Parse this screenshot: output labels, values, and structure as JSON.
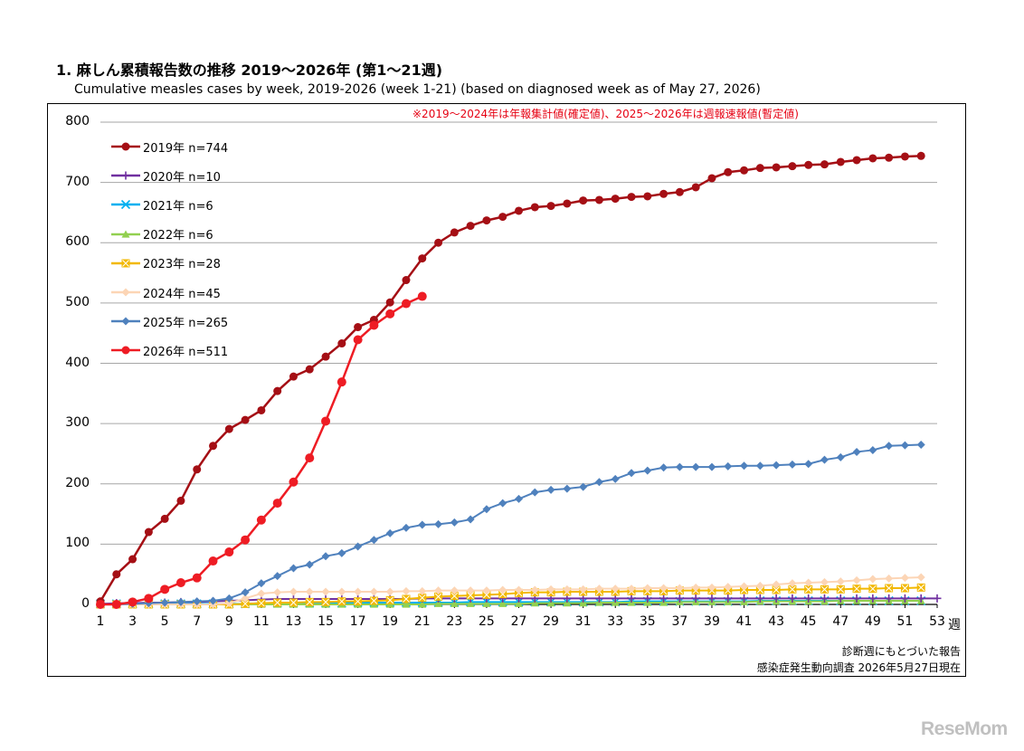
{
  "header": {
    "title": "1. 麻しん累積報告数の推移  2019～2026年 (第1～21週)",
    "subtitle": "Cumulative measles cases by week, 2019-2026 (week 1-21)  (based on diagnosed week as of May 27, 2026)"
  },
  "note": "※2019～2024年は年報集計値(確定値)、2025～2026年は週報速報値(暫定値)",
  "footer": {
    "line1": "診断週にもとづいた報告",
    "line2": "感染症発生動向調査 2026年5月27日現在"
  },
  "watermark": "ReseMom",
  "chart_data": {
    "type": "line",
    "xlabel": "週",
    "ylabel": "",
    "xlim": [
      1,
      53
    ],
    "ylim": [
      0,
      800
    ],
    "x_ticks": [
      "1",
      "3",
      "5",
      "7",
      "9",
      "11",
      "13",
      "15",
      "17",
      "19",
      "21",
      "23",
      "25",
      "27",
      "29",
      "31",
      "33",
      "35",
      "37",
      "39",
      "41",
      "43",
      "45",
      "47",
      "49",
      "51",
      "53"
    ],
    "y_ticks": [
      "800",
      "700",
      "600",
      "500",
      "400",
      "300",
      "200",
      "100",
      "0"
    ],
    "grid": "horizontal",
    "legend_position": "top-left",
    "series": [
      {
        "name": "2019年 n=744",
        "color": "#a50f15",
        "marker": "circle",
        "values": [
          5,
          50,
          75,
          120,
          142,
          172,
          224,
          263,
          291,
          306,
          322,
          354,
          378,
          390,
          411,
          433,
          460,
          472,
          501,
          538,
          574,
          600,
          617,
          628,
          637,
          643,
          653,
          659,
          661,
          665,
          670,
          671,
          673,
          676,
          677,
          681,
          684,
          692,
          707,
          717,
          720,
          724,
          725,
          727,
          729,
          730,
          734,
          737,
          740,
          741,
          743,
          744
        ]
      },
      {
        "name": "2020年 n=10",
        "color": "#7030a0",
        "marker": "plus",
        "values": [
          1,
          2,
          2,
          3,
          3,
          4,
          4,
          5,
          6,
          7,
          8,
          9,
          9,
          9,
          9,
          9,
          9,
          9,
          9,
          9,
          10,
          10,
          10,
          10,
          10,
          10,
          10,
          10,
          10,
          10,
          10,
          10,
          10,
          10,
          10,
          10,
          10,
          10,
          10,
          10,
          10,
          10,
          10,
          10,
          10,
          10,
          10,
          10,
          10,
          10,
          10,
          10,
          10
        ]
      },
      {
        "name": "2021年 n=6",
        "color": "#00b0f0",
        "marker": "x",
        "values": [
          1,
          1,
          1,
          1,
          1,
          1,
          1,
          1,
          1,
          1,
          2,
          2,
          2,
          2,
          2,
          2,
          3,
          3,
          3,
          3,
          3,
          3,
          3,
          4,
          4,
          4,
          4,
          4,
          4,
          4,
          4,
          4,
          4,
          5,
          5,
          5,
          5,
          5,
          5,
          5,
          5,
          6,
          6,
          6,
          6,
          6,
          6,
          6,
          6,
          6,
          6,
          6
        ]
      },
      {
        "name": "2022年 n=6",
        "color": "#92d050",
        "marker": "triangle",
        "values": [
          0,
          0,
          0,
          0,
          0,
          0,
          0,
          0,
          0,
          0,
          0,
          0,
          0,
          0,
          0,
          0,
          0,
          0,
          0,
          0,
          0,
          1,
          1,
          1,
          1,
          1,
          1,
          2,
          2,
          2,
          2,
          3,
          3,
          3,
          3,
          3,
          4,
          4,
          4,
          4,
          4,
          5,
          5,
          5,
          5,
          5,
          6,
          6,
          6,
          6,
          6,
          6
        ]
      },
      {
        "name": "2023年 n=28",
        "color": "#f2b800",
        "marker": "square-x",
        "values": [
          0,
          0,
          0,
          0,
          0,
          0,
          0,
          0,
          0,
          1,
          2,
          3,
          3,
          4,
          4,
          5,
          5,
          6,
          7,
          9,
          11,
          13,
          14,
          15,
          16,
          17,
          19,
          20,
          20,
          21,
          21,
          21,
          21,
          22,
          22,
          22,
          23,
          23,
          23,
          23,
          24,
          24,
          24,
          25,
          25,
          25,
          25,
          26,
          26,
          27,
          27,
          28
        ]
      },
      {
        "name": "2024年 n=45",
        "color": "#fcd5b5",
        "marker": "diamond",
        "values": [
          0,
          0,
          0,
          0,
          0,
          0,
          0,
          0,
          2,
          10,
          18,
          20,
          21,
          21,
          21,
          21,
          21,
          21,
          21,
          22,
          22,
          23,
          23,
          23,
          23,
          24,
          24,
          24,
          25,
          25,
          25,
          26,
          26,
          26,
          27,
          27,
          27,
          28,
          28,
          29,
          30,
          31,
          33,
          35,
          36,
          37,
          38,
          40,
          42,
          43,
          44,
          45
        ]
      },
      {
        "name": "2025年 n=265",
        "color": "#4f81bd",
        "marker": "diamond",
        "values": [
          0,
          0,
          1,
          2,
          3,
          4,
          5,
          6,
          10,
          20,
          35,
          47,
          60,
          66,
          80,
          85,
          96,
          107,
          118,
          127,
          132,
          133,
          136,
          141,
          158,
          168,
          175,
          186,
          190,
          192,
          195,
          203,
          208,
          218,
          222,
          227,
          228,
          228,
          228,
          229,
          230,
          230,
          231,
          232,
          233,
          240,
          244,
          253,
          256,
          263,
          264,
          265
        ]
      },
      {
        "name": "2026年 n=511",
        "color": "#ee1c24",
        "marker": "circle",
        "values": [
          0,
          0,
          4,
          10,
          25,
          36,
          44,
          72,
          87,
          107,
          140,
          168,
          203,
          243,
          304,
          369,
          439,
          463,
          482,
          499,
          511
        ]
      }
    ]
  }
}
